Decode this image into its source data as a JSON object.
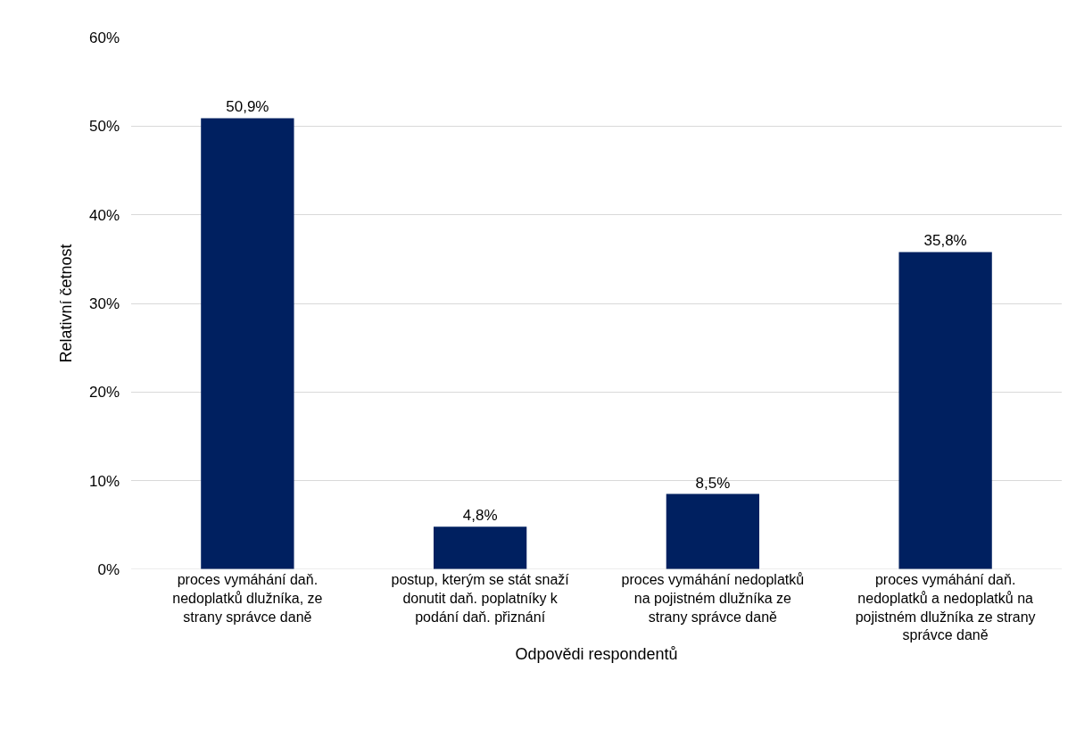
{
  "chart_data": {
    "type": "bar",
    "xlabel": "Odpovědi respondentů",
    "ylabel": "Relativní četnost",
    "categories": [
      "proces vymáhání daň. nedoplatků dlužníka, ze strany správce daně",
      "postup, kterým se stát snaží donutit daň. poplatníky k podání daň. přiznání",
      "proces vymáhání nedoplatků na pojistném dlužníka ze strany správce daně",
      "proces vymáhání daň. nedoplatků a nedoplatků na pojistném dlužníka ze strany správce daně"
    ],
    "values": [
      50.9,
      4.8,
      8.5,
      35.8
    ],
    "value_labels": [
      "50,9%",
      "4,8%",
      "8,5%",
      "35,8%"
    ],
    "color": "#002060",
    "ylim": [
      0,
      60
    ],
    "yticks": [
      {
        "value": 0,
        "label": "0%"
      },
      {
        "value": 10,
        "label": "10%"
      },
      {
        "value": 20,
        "label": "20%"
      },
      {
        "value": 30,
        "label": "30%"
      },
      {
        "value": 40,
        "label": "40%"
      },
      {
        "value": 50,
        "label": "50%"
      },
      {
        "value": 60,
        "label": "60%"
      }
    ],
    "grid": "y"
  }
}
